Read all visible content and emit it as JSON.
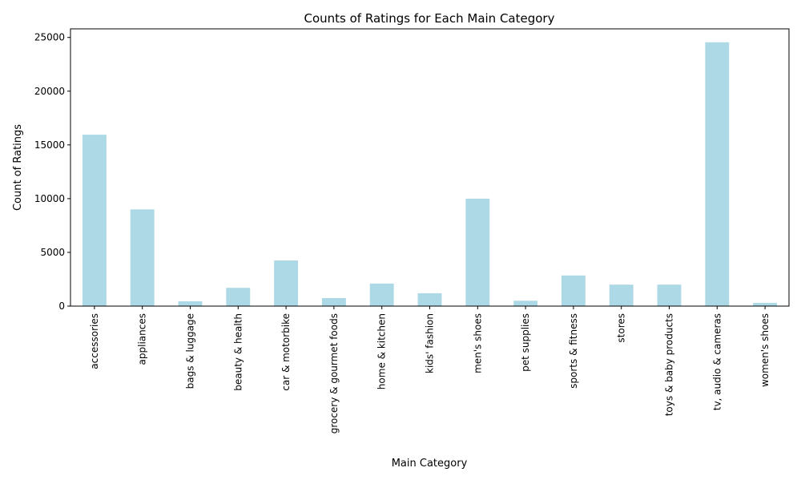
{
  "chart_data": {
    "type": "bar",
    "title": "Counts of Ratings for Each Main Category",
    "xlabel": "Main Category",
    "ylabel": "Count of Ratings",
    "ylim": [
      0,
      25800
    ],
    "yticks": [
      0,
      5000,
      10000,
      15000,
      20000,
      25000
    ],
    "grid": false,
    "legend": "none",
    "bar_color": "#add8e6",
    "categories": [
      "accessories",
      "appliances",
      "bags & luggage",
      "beauty & health",
      "car & motorbike",
      "grocery & gourmet foods",
      "home & kitchen",
      "kids' fashion",
      "men's shoes",
      "pet supplies",
      "sports & fitness",
      "stores",
      "toys & baby products",
      "tv, audio & cameras",
      "women's shoes"
    ],
    "values": [
      15950,
      9000,
      450,
      1700,
      4250,
      750,
      2100,
      1200,
      10000,
      500,
      2850,
      2000,
      2000,
      24550,
      300
    ]
  }
}
